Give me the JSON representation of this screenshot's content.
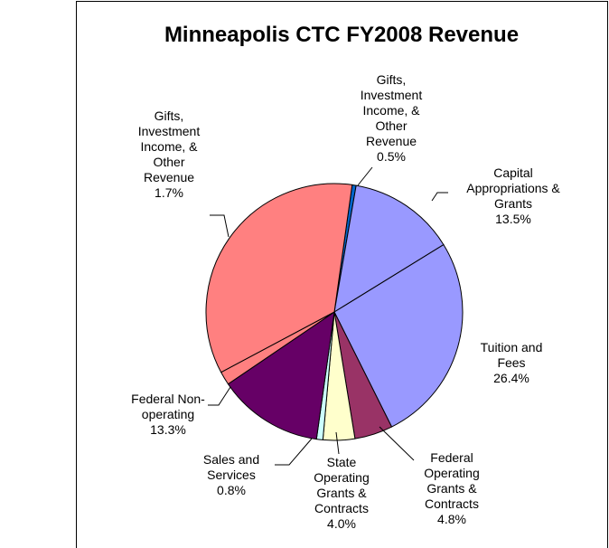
{
  "chart_data": {
    "type": "pie",
    "title": "Minneapolis CTC FY2008 Revenue",
    "categories": [
      "Gifts, Investment Income, & Other Revenue",
      "Capital Appropriations & Grants",
      "Tuition and Fees",
      "Federal Operating Grants & Contracts",
      "State Operating Grants & Contracts",
      "Sales and Services",
      "Federal Non-operating",
      "Gifts, Investment Income, & Other Revenue",
      null
    ],
    "values": [
      0.5,
      13.5,
      26.4,
      4.8,
      4.0,
      0.8,
      13.3,
      1.7,
      35.0
    ],
    "value_labels": [
      "0.5%",
      "13.5%",
      "26.4%",
      "4.8%",
      "4.0%",
      "0.8%",
      "13.3%",
      "1.7%",
      null
    ],
    "colors": [
      "#0066cc",
      "#9999ff",
      "#9999ff",
      "#993366",
      "#ffffcc",
      "#ccffff",
      "#660066",
      "#ff8080",
      "#ff8080"
    ]
  }
}
